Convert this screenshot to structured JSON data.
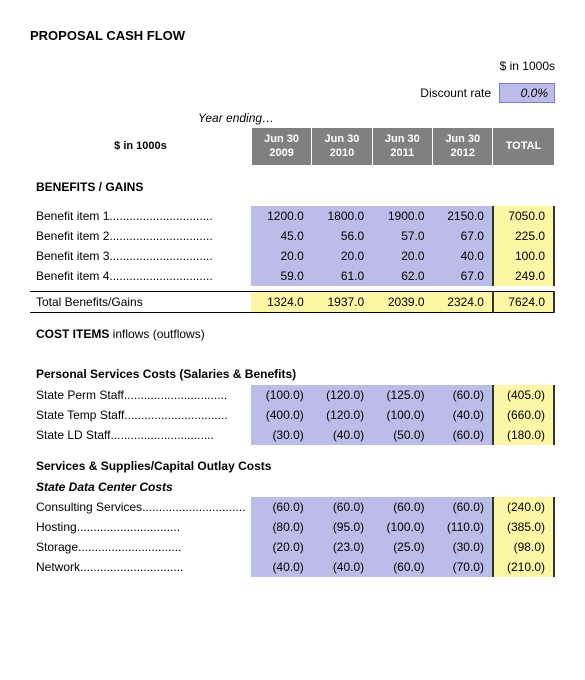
{
  "title": "PROPOSAL CASH FLOW",
  "units": "$ in 1000s",
  "discount": {
    "label": "Discount rate",
    "value": "0.0%"
  },
  "year_ending_label": "Year ending…",
  "row_header_label": "$ in 1000s",
  "years": [
    "Jun 30 2009",
    "Jun 30 2010",
    "Jun 30 2011",
    "Jun 30 2012"
  ],
  "total_label": "TOTAL",
  "benefits": {
    "heading": "BENEFITS / GAINS",
    "rows": [
      {
        "label": "Benefit item 1",
        "v": [
          "1200.0",
          "1800.0",
          "1900.0",
          "2150.0"
        ],
        "t": "7050.0"
      },
      {
        "label": "Benefit item 2",
        "v": [
          "45.0",
          "56.0",
          "57.0",
          "67.0"
        ],
        "t": "225.0"
      },
      {
        "label": "Benefit item 3",
        "v": [
          "20.0",
          "20.0",
          "20.0",
          "40.0"
        ],
        "t": "100.0"
      },
      {
        "label": "Benefit item 4",
        "v": [
          "59.0",
          "61.0",
          "62.0",
          "67.0"
        ],
        "t": "249.0"
      }
    ],
    "total": {
      "label": "Total Benefits/Gains",
      "v": [
        "1324.0",
        "1937.0",
        "2039.0",
        "2324.0"
      ],
      "t": "7624.0"
    }
  },
  "costs": {
    "heading": "COST ITEMS inflows (outflows)",
    "personal": {
      "heading": "Personal Services Costs (Salaries & Benefits)",
      "rows": [
        {
          "label": "State Perm Staff",
          "v": [
            "(100.0)",
            "(120.0)",
            "(125.0)",
            "(60.0)"
          ],
          "t": "(405.0)"
        },
        {
          "label": "State Temp Staff",
          "v": [
            "(400.0)",
            "(120.0)",
            "(100.0)",
            "(40.0)"
          ],
          "t": "(660.0)"
        },
        {
          "label": "State LD Staff",
          "v": [
            "(30.0)",
            "(40.0)",
            "(50.0)",
            "(60.0)"
          ],
          "t": "(180.0)"
        }
      ]
    },
    "services": {
      "heading": "Services & Supplies/Capital Outlay Costs",
      "subheading": "State Data Center Costs",
      "rows": [
        {
          "label": "Consulting Services",
          "v": [
            "(60.0)",
            "(60.0)",
            "(60.0)",
            "(60.0)"
          ],
          "t": "(240.0)"
        },
        {
          "label": "Hosting",
          "v": [
            "(80.0)",
            "(95.0)",
            "(100.0)",
            "(110.0)"
          ],
          "t": "(385.0)"
        },
        {
          "label": "Storage",
          "v": [
            "(20.0)",
            "(23.0)",
            "(25.0)",
            "(30.0)"
          ],
          "t": "(98.0)"
        },
        {
          "label": "Network",
          "v": [
            "(40.0)",
            "(40.0)",
            "(60.0)",
            "(70.0)"
          ],
          "t": "(210.0)"
        }
      ]
    }
  },
  "colors": {
    "cell_bg": "#bcbce8",
    "total_bg": "#fdf6a5",
    "header_bg": "#808080"
  }
}
